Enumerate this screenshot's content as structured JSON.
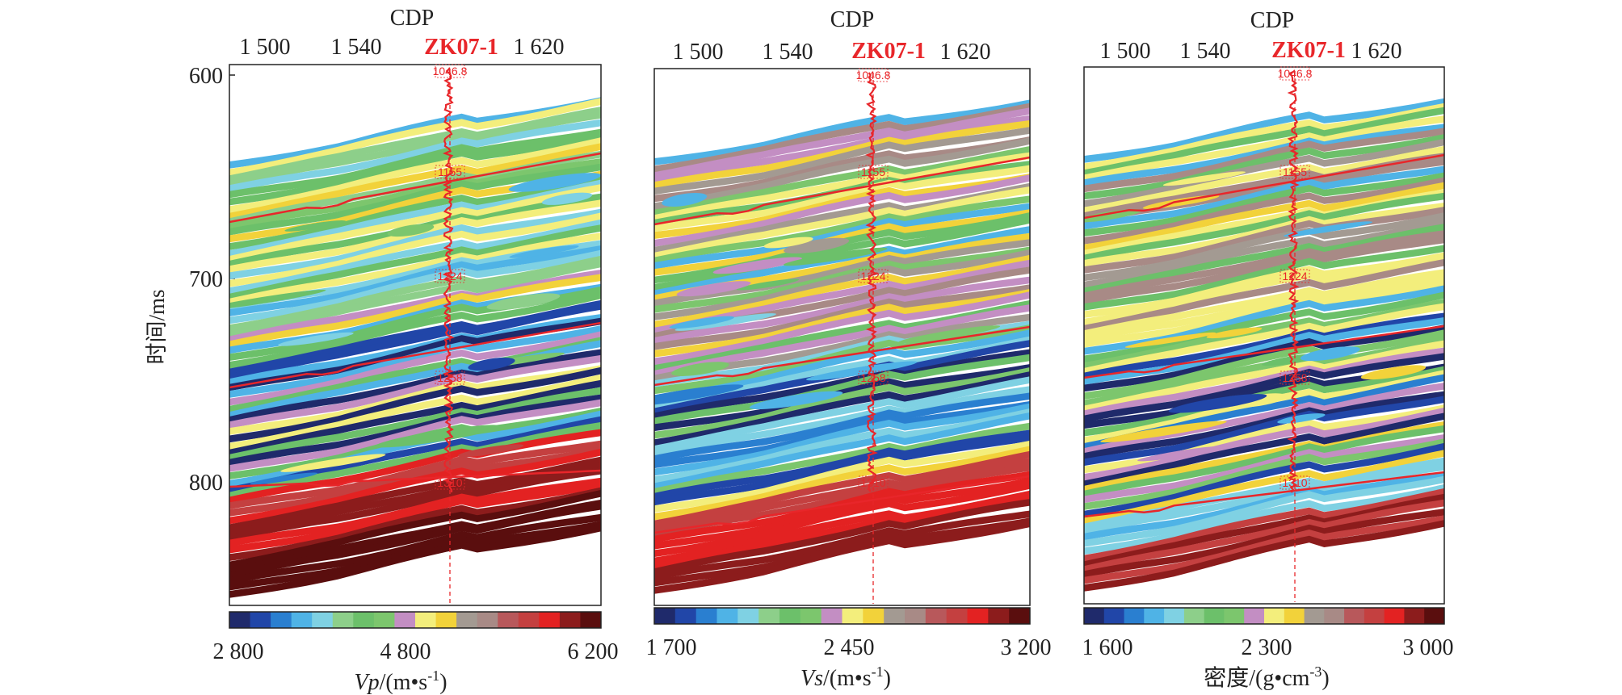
{
  "chart_data": {
    "type": "heatmap",
    "y_axis": {
      "label": "时间/ms",
      "ticks": [
        600,
        700,
        800
      ],
      "range": [
        595,
        860
      ],
      "direction": "down"
    },
    "palette": [
      "#1f2a6b",
      "#2146a8",
      "#2a7fd0",
      "#4fb3e6",
      "#7fd1e3",
      "#8dcf8a",
      "#6cc06a",
      "#7cc66d",
      "#c38ec3",
      "#f3ee7c",
      "#f2d23a",
      "#a39a92",
      "#a88a86",
      "#b8585b",
      "#c44040",
      "#e32222",
      "#8c1c1c",
      "#5a0e0e"
    ],
    "panels": [
      {
        "id": "vp",
        "x_title": "CDP",
        "x_ticks": [
          "1 500",
          "1 540",
          "1 620"
        ],
        "well_label": "ZK07-1",
        "colorbar": {
          "ticks": [
            "2 800",
            "4 800",
            "6 200"
          ],
          "label_main": "Vp",
          "label_unit": "/(m•s",
          "label_exp": "-1",
          "label_close": ")"
        }
      },
      {
        "id": "vs",
        "x_title": "CDP",
        "x_ticks": [
          "1 500",
          "1 540",
          "1 620"
        ],
        "well_label": "ZK07-1",
        "colorbar": {
          "ticks": [
            "1 700",
            "2 450",
            "3 200"
          ],
          "label_main": "Vs",
          "label_unit": "/(m•s",
          "label_exp": "-1",
          "label_close": ")"
        }
      },
      {
        "id": "density",
        "x_title": "CDP",
        "x_ticks": [
          "1 500",
          "1 540",
          "1 620"
        ],
        "well_label": "ZK07-1",
        "colorbar": {
          "ticks": [
            "1 600",
            "2 300",
            "3 000"
          ],
          "label_main": "密度",
          "label_unit": "/(g•cm",
          "label_exp": "-3",
          "label_close": ")"
        }
      }
    ],
    "well_depth_labels": [
      "1046.8",
      "1155",
      "1224",
      "1258",
      "1310"
    ]
  }
}
